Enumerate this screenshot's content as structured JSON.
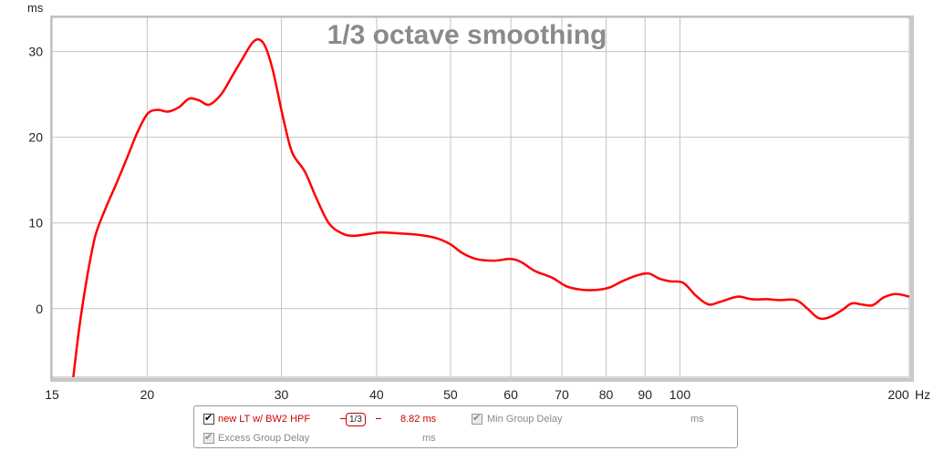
{
  "chart_data": {
    "type": "line",
    "title": "1/3 octave smoothing",
    "xlabel": "Hz",
    "ylabel": "ms",
    "xscale": "log",
    "xlim": [
      15,
      200
    ],
    "ylim": [
      -8,
      34
    ],
    "x_ticks": [
      15,
      20,
      30,
      40,
      50,
      60,
      70,
      80,
      90,
      100,
      200
    ],
    "x_tick_labels": [
      "15",
      "20",
      "30",
      "40",
      "50",
      "60",
      "70",
      "80",
      "90",
      "100",
      "200"
    ],
    "y_ticks": [
      0,
      10,
      20,
      30
    ],
    "y_tick_labels": [
      "0",
      "10",
      "20",
      "30"
    ],
    "grid": true,
    "series": [
      {
        "name": "new LT w/ BW2 HPF",
        "color": "#ff0000",
        "points": [
          [
            16.0,
            -8.0
          ],
          [
            16.3,
            -2.0
          ],
          [
            16.7,
            4.0
          ],
          [
            17.1,
            8.5
          ],
          [
            17.6,
            11.5
          ],
          [
            18.2,
            14.5
          ],
          [
            18.8,
            17.5
          ],
          [
            19.4,
            20.5
          ],
          [
            20.0,
            22.7
          ],
          [
            20.6,
            23.2
          ],
          [
            21.3,
            23.0
          ],
          [
            22.0,
            23.5
          ],
          [
            22.7,
            24.5
          ],
          [
            23.4,
            24.3
          ],
          [
            24.1,
            23.8
          ],
          [
            25.0,
            25.0
          ],
          [
            25.8,
            27.0
          ],
          [
            26.6,
            29.0
          ],
          [
            27.6,
            31.2
          ],
          [
            28.4,
            31.0
          ],
          [
            29.2,
            28.0
          ],
          [
            30.2,
            22.0
          ],
          [
            31.0,
            18.2
          ],
          [
            32.2,
            16.0
          ],
          [
            33.3,
            13.0
          ],
          [
            34.6,
            10.0
          ],
          [
            36.0,
            8.8
          ],
          [
            37.2,
            8.5
          ],
          [
            39.0,
            8.7
          ],
          [
            40.5,
            8.9
          ],
          [
            42.5,
            8.8
          ],
          [
            45.5,
            8.6
          ],
          [
            48.0,
            8.2
          ],
          [
            50.0,
            7.5
          ],
          [
            51.8,
            6.5
          ],
          [
            54.0,
            5.8
          ],
          [
            57.0,
            5.6
          ],
          [
            60.0,
            5.8
          ],
          [
            62.0,
            5.4
          ],
          [
            64.5,
            4.4
          ],
          [
            68.0,
            3.6
          ],
          [
            71.0,
            2.6
          ],
          [
            74.5,
            2.2
          ],
          [
            78.0,
            2.2
          ],
          [
            81.0,
            2.5
          ],
          [
            84.0,
            3.2
          ],
          [
            88.0,
            3.9
          ],
          [
            91.0,
            4.1
          ],
          [
            94.0,
            3.5
          ],
          [
            97.0,
            3.2
          ],
          [
            101.0,
            3.0
          ],
          [
            105.0,
            1.5
          ],
          [
            109.0,
            0.5
          ],
          [
            113.0,
            0.8
          ],
          [
            119.0,
            1.4
          ],
          [
            124.0,
            1.1
          ],
          [
            130.0,
            1.1
          ],
          [
            135.0,
            1.0
          ],
          [
            142.0,
            1.0
          ],
          [
            147.0,
            0.0
          ],
          [
            152.0,
            -1.1
          ],
          [
            157.0,
            -1.0
          ],
          [
            163.0,
            -0.2
          ],
          [
            168.0,
            0.6
          ],
          [
            173.0,
            0.5
          ],
          [
            179.0,
            0.4
          ],
          [
            185.0,
            1.3
          ],
          [
            192.0,
            1.7
          ],
          [
            200.0,
            1.4
          ]
        ]
      }
    ]
  },
  "legend": {
    "series_label": "new LT w/ BW2 HPF",
    "series_smoothing": "1/3",
    "series_value": "8.82 ms",
    "min_group_delay_label": "Min Group Delay",
    "min_group_delay_value": "ms",
    "excess_group_delay_label": "Excess Group Delay",
    "excess_group_delay_value": "ms"
  }
}
